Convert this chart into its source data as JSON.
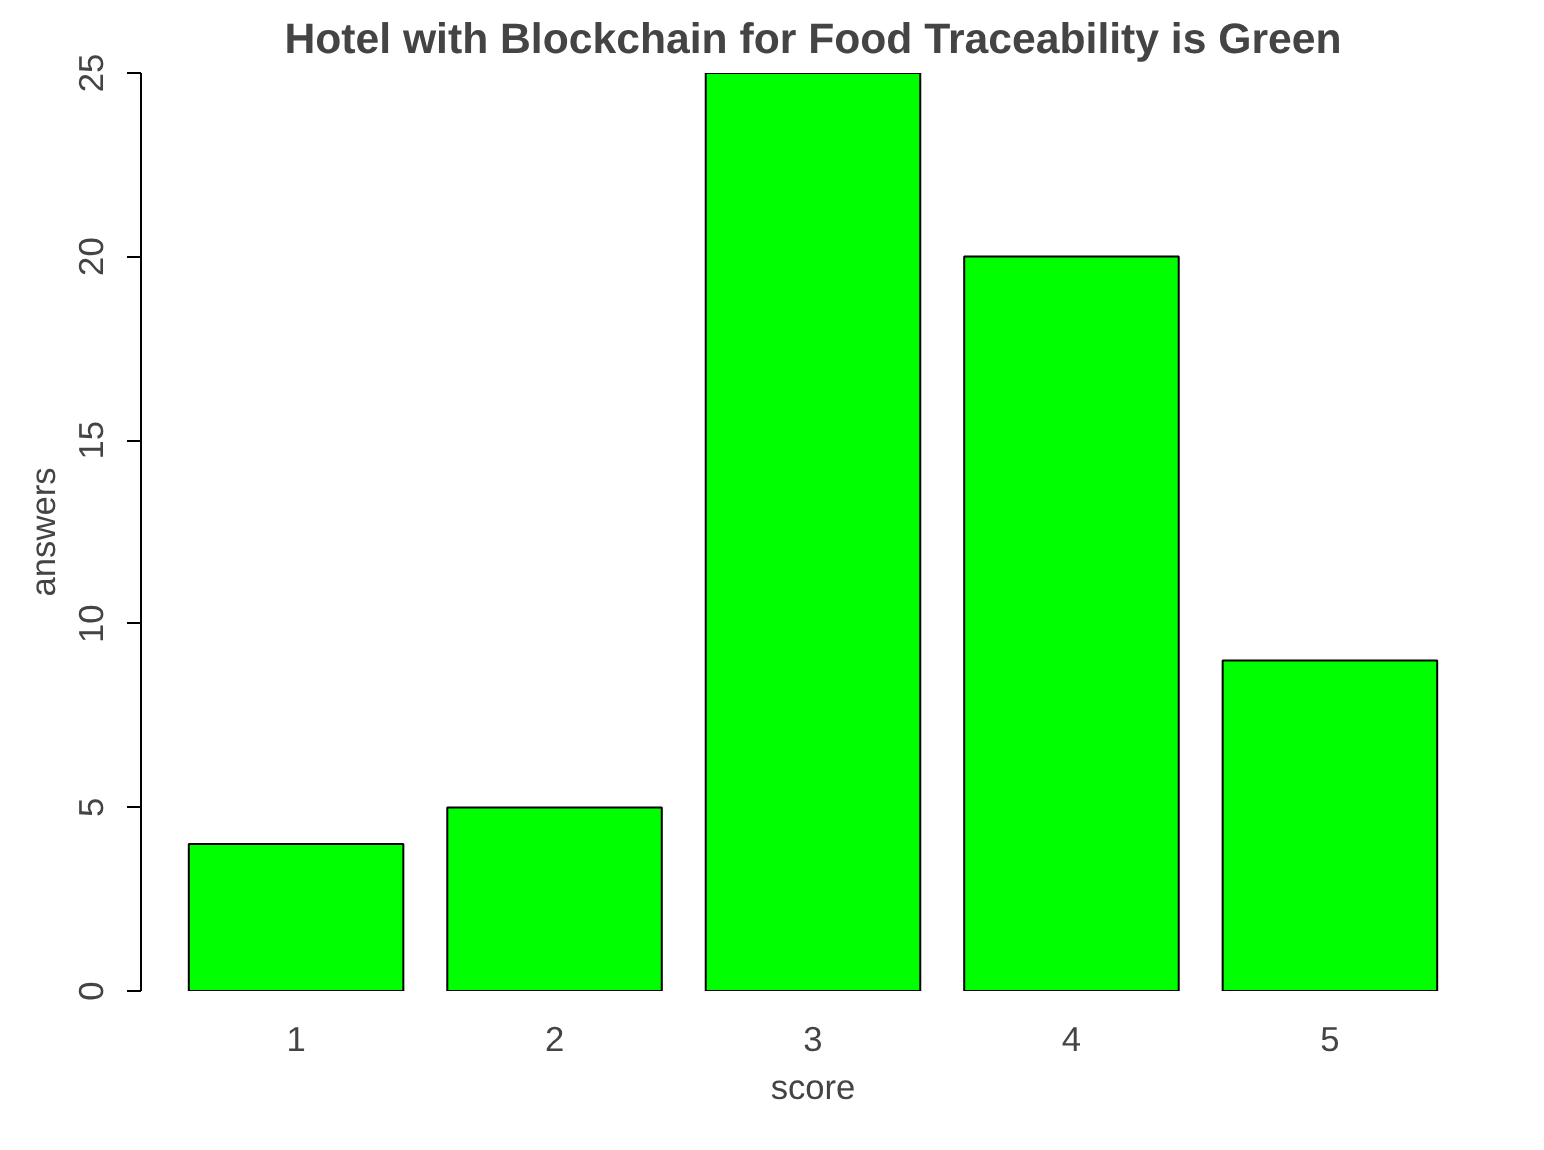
{
  "chart_data": {
    "type": "bar",
    "title": "Hotel with Blockchain for Food Traceability is Green",
    "xlabel": "score",
    "ylabel": "answers",
    "categories": [
      "1",
      "2",
      "3",
      "4",
      "5"
    ],
    "values": [
      4,
      5,
      25,
      20,
      9
    ],
    "color": "#00ff00",
    "ylim": [
      0,
      25
    ],
    "yticks": [
      0,
      5,
      10,
      15,
      20,
      25
    ],
    "grid": false
  }
}
